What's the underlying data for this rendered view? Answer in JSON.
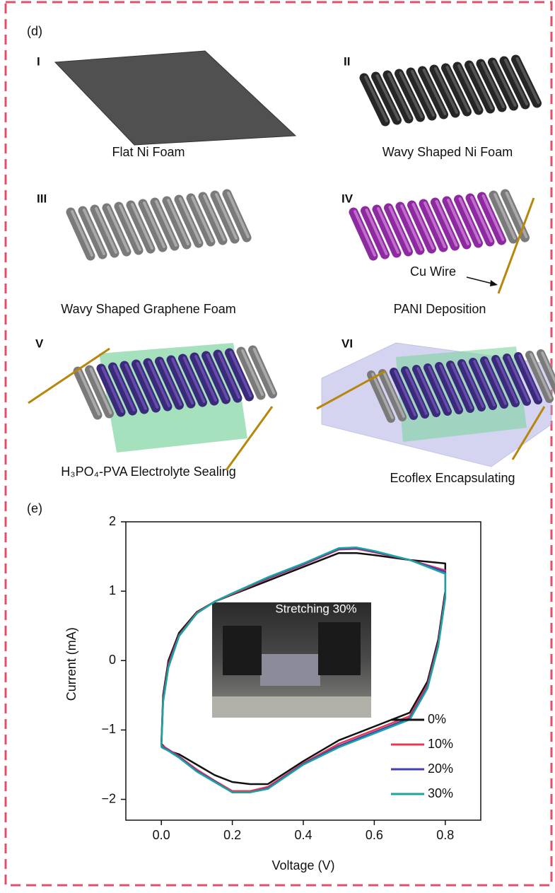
{
  "diagram": {
    "label": "(d)",
    "panels": [
      {
        "numeral": "I",
        "caption": "Flat Ni Foam"
      },
      {
        "numeral": "II",
        "caption": "Wavy Shaped Ni Foam"
      },
      {
        "numeral": "III",
        "caption": "Wavy Shaped Graphene Foam"
      },
      {
        "numeral": "IV",
        "caption": "PANI Deposition",
        "annotation": "Cu Wire"
      },
      {
        "numeral": "V",
        "caption": "H₃PO₄-PVA Electrolyte Sealing"
      },
      {
        "numeral": "VI",
        "caption": "Ecoflex Encapsulating"
      }
    ]
  },
  "chart_data": {
    "type": "line",
    "panel_label": "(e)",
    "x_label": "Voltage (V)",
    "y_label": "Current (mA)",
    "inset_label": "Stretching 30%",
    "x": [
      0,
      0.005,
      0.02,
      0.05,
      0.1,
      0.15,
      0.2,
      0.3,
      0.4,
      0.5,
      0.55,
      0.6,
      0.7,
      0.8,
      0.8,
      0.78,
      0.75,
      0.7,
      0.6,
      0.5,
      0.4,
      0.3,
      0.25,
      0.2,
      0.15,
      0.1,
      0.05,
      0.02,
      0
    ],
    "series": [
      {
        "name": "0%",
        "color": "#111111",
        "values": [
          -1.2,
          -0.5,
          0.0,
          0.4,
          0.7,
          0.85,
          0.95,
          1.15,
          1.35,
          1.55,
          1.55,
          1.52,
          1.45,
          1.4,
          1.0,
          0.3,
          -0.3,
          -0.75,
          -0.95,
          -1.15,
          -1.45,
          -1.78,
          -1.78,
          -1.75,
          -1.65,
          -1.5,
          -1.35,
          -1.3,
          -1.2
        ]
      },
      {
        "name": "10%",
        "color": "#e8384f",
        "values": [
          -1.22,
          -0.55,
          -0.05,
          0.37,
          0.69,
          0.85,
          0.96,
          1.18,
          1.38,
          1.6,
          1.61,
          1.56,
          1.45,
          1.3,
          0.95,
          0.25,
          -0.35,
          -0.8,
          -1.0,
          -1.2,
          -1.48,
          -1.82,
          -1.88,
          -1.88,
          -1.73,
          -1.57,
          -1.38,
          -1.28,
          -1.22
        ]
      },
      {
        "name": "20%",
        "color": "#4040b0",
        "values": [
          -1.24,
          -0.58,
          -0.08,
          0.36,
          0.68,
          0.85,
          0.97,
          1.19,
          1.39,
          1.61,
          1.62,
          1.57,
          1.45,
          1.28,
          0.92,
          0.22,
          -0.38,
          -0.83,
          -1.03,
          -1.23,
          -1.49,
          -1.84,
          -1.9,
          -1.9,
          -1.74,
          -1.59,
          -1.39,
          -1.29,
          -1.24
        ]
      },
      {
        "name": "30%",
        "color": "#1aa3a3",
        "values": [
          -1.25,
          -0.6,
          -0.1,
          0.35,
          0.68,
          0.85,
          0.97,
          1.2,
          1.4,
          1.62,
          1.63,
          1.58,
          1.45,
          1.25,
          0.9,
          0.2,
          -0.4,
          -0.85,
          -1.05,
          -1.25,
          -1.5,
          -1.85,
          -1.9,
          -1.9,
          -1.75,
          -1.6,
          -1.4,
          -1.3,
          -1.25
        ]
      }
    ],
    "xlim": [
      -0.1,
      0.9
    ],
    "ylim": [
      -2.3,
      2
    ],
    "xticks": [
      {
        "value": 0,
        "label": "0.0"
      },
      0.2,
      0.4,
      0.6,
      0.8
    ],
    "yticks": [
      {
        "value": -2,
        "label": "−2"
      },
      {
        "value": -1,
        "label": "−1"
      },
      0,
      1,
      2
    ],
    "legend": "lower right"
  }
}
